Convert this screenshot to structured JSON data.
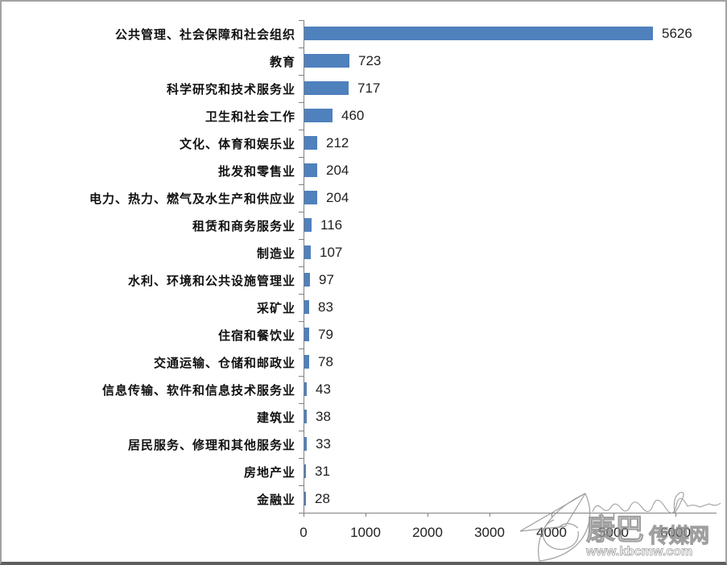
{
  "chart_data": {
    "type": "bar",
    "orientation": "horizontal",
    "title": "",
    "xlabel": "",
    "ylabel": "",
    "categories": [
      "公共管理、社会保障和社会组织",
      "教育",
      "科学研究和技术服务业",
      "卫生和社会工作",
      "文化、体育和娱乐业",
      "批发和零售业",
      "电力、热力、燃气及水生产和供应业",
      "租赁和商务服务业",
      "制造业",
      "水利、环境和公共设施管理业",
      "采矿业",
      "住宿和餐饮业",
      "交通运输、仓储和邮政业",
      "信息传输、软件和信息技术服务业",
      "建筑业",
      "居民服务、修理和其他服务业",
      "房地产业",
      "金融业"
    ],
    "values": [
      5626,
      723,
      717,
      460,
      212,
      204,
      204,
      116,
      107,
      97,
      83,
      79,
      78,
      43,
      38,
      33,
      31,
      28
    ],
    "data_labels": [
      "5626",
      "723",
      "717",
      "460",
      "212",
      "204",
      "204",
      "116",
      "107",
      "97",
      "83",
      "79",
      "78",
      "43",
      "38",
      "33",
      "31",
      "28"
    ],
    "x_ticks": [
      "0",
      "1000",
      "2000",
      "3000",
      "4000",
      "5000",
      "6000"
    ],
    "xlim": [
      0,
      6000
    ],
    "grid": false,
    "legend": false,
    "bar_color": "#4f81bd",
    "axis_color": "#808080"
  },
  "watermark": {
    "brand_part1": "康巴",
    "brand_part2": "传媒网",
    "url": "www.kbcmw.com"
  }
}
